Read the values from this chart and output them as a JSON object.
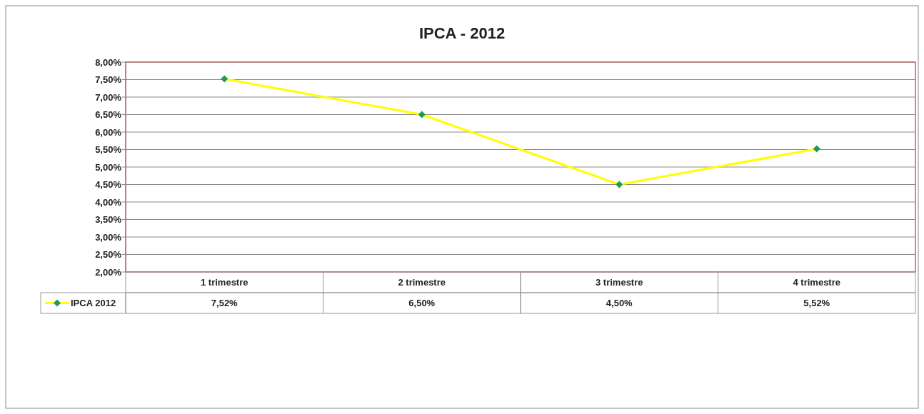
{
  "chart_data": {
    "type": "line",
    "title": "IPCA - 2012",
    "categories": [
      "1 trimestre",
      "2 trimestre",
      "3 trimestre",
      "4 trimestre"
    ],
    "series": [
      {
        "name": "IPCA 2012",
        "color": "#ffff00",
        "values": [
          7.52,
          6.5,
          4.5,
          5.52
        ],
        "value_labels": [
          "7,52%",
          "6,50%",
          "4,50%",
          "5,52%"
        ]
      }
    ],
    "ylim": [
      2,
      8
    ],
    "yticks": [
      {
        "value": 2,
        "label": "2,00%"
      },
      {
        "value": 2.5,
        "label": "2,50%"
      },
      {
        "value": 3,
        "label": "3,00%"
      },
      {
        "value": 3.5,
        "label": "3,50%"
      },
      {
        "value": 4,
        "label": "4,00%"
      },
      {
        "value": 4.5,
        "label": "4,50%"
      },
      {
        "value": 5,
        "label": "5,00%"
      },
      {
        "value": 5.5,
        "label": "5,50%"
      },
      {
        "value": 6,
        "label": "6,00%"
      },
      {
        "value": 6.5,
        "label": "6,50%"
      },
      {
        "value": 7,
        "label": "7,00%"
      },
      {
        "value": 7.5,
        "label": "7,50%"
      },
      {
        "value": 8,
        "label": "8,00%"
      }
    ],
    "grid": "y",
    "legend": "bottom",
    "marker": "diamond",
    "line_style": "solid"
  }
}
